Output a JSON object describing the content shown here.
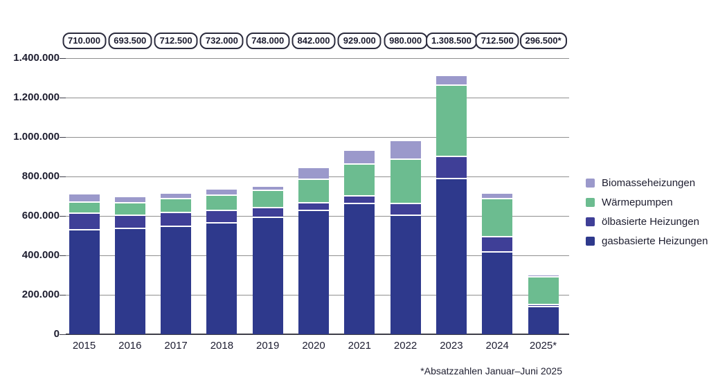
{
  "chart_data": {
    "type": "bar",
    "stacked": true,
    "title": "",
    "xlabel": "",
    "ylabel": "",
    "ylim": [
      0,
      1400000
    ],
    "grid": true,
    "legend_position": "right",
    "categories": [
      "2015",
      "2016",
      "2017",
      "2018",
      "2019",
      "2020",
      "2021",
      "2022",
      "2023",
      "2024",
      "2025*"
    ],
    "totals_labels": [
      "710.000",
      "693.500",
      "712.500",
      "732.000",
      "748.000",
      "842.000",
      "929.000",
      "980.000",
      "1.308.500",
      "712.500",
      "296.500*"
    ],
    "totals_values": [
      710000,
      693500,
      712500,
      732000,
      748000,
      842000,
      929000,
      980000,
      1308500,
      712500,
      296500
    ],
    "y_tick_labels": [
      "1.400.000",
      "1.200.000",
      "1.000.000",
      "800.000",
      "600.000",
      "400.000",
      "200.000",
      "0"
    ],
    "series": [
      {
        "name": "gasbasierte Heizungen",
        "color": "#2e398c",
        "values": [
          527500,
          532000,
          543500,
          562500,
          590000,
          623000,
          659000,
          601000,
          786000,
          415500,
          137000
        ]
      },
      {
        "name": "ölbasierte Heizungen",
        "color": "#3f3f97",
        "values": [
          83500,
          69000,
          71500,
          62500,
          50000,
          40500,
          37500,
          57000,
          111500,
          77000,
          11000
        ]
      },
      {
        "name": "Wärmepumpen",
        "color": "#6cbc90",
        "values": [
          56000,
          62000,
          67500,
          76500,
          88000,
          118500,
          163500,
          227500,
          363000,
          193000,
          139500
        ]
      },
      {
        "name": "Biomasseheizungen",
        "color": "#9b99cb",
        "values": [
          43000,
          30500,
          30000,
          30500,
          20000,
          60000,
          69000,
          94500,
          48000,
          27000,
          9000
        ]
      }
    ],
    "legend": [
      {
        "label": "Biomasseheizungen",
        "color": "#9b99cb"
      },
      {
        "label": "Wärmepumpen",
        "color": "#6cbc90"
      },
      {
        "label": "ölbasierte Heizungen",
        "color": "#3f3f97"
      },
      {
        "label": "gasbasierte Heizungen",
        "color": "#2e398c"
      }
    ],
    "footnote": "*Absatzzahlen Januar–Juni 2025"
  },
  "colors": {
    "grid": "#8f8f8f",
    "axis": "#3d3d48",
    "text": "#1d1d2f",
    "pill_border": "#2b2b3d",
    "background": "#ffffff"
  }
}
